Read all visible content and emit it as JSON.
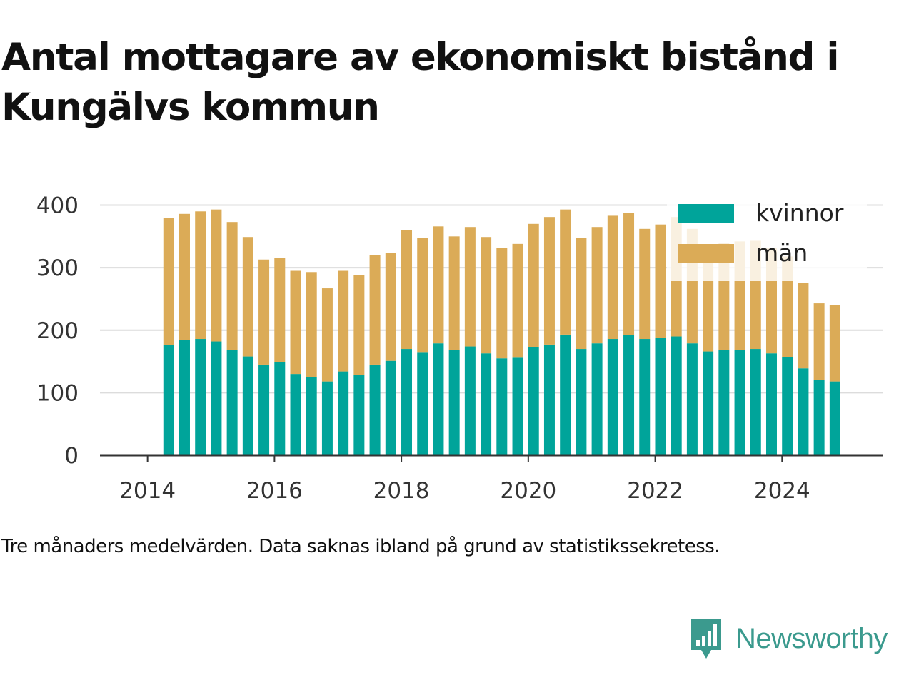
{
  "title": "Antal mottagare av ekonomiskt bistånd i Kungälvs kommun",
  "footnote": "Tre månaders medelvärden. Data saknas ibland på grund av statistikssekretess.",
  "brand": {
    "name": "Newsworthy",
    "color": "#3b9a8e",
    "icon": "newsworthy-logo-icon"
  },
  "chart_data": {
    "type": "bar",
    "stacked": true,
    "x": [
      "2014-05",
      "2014-08",
      "2014-11",
      "2015-02",
      "2015-05",
      "2015-08",
      "2015-11",
      "2016-02",
      "2016-05",
      "2016-08",
      "2016-11",
      "2017-02",
      "2017-05",
      "2017-08",
      "2017-11",
      "2018-02",
      "2018-05",
      "2018-08",
      "2018-11",
      "2019-02",
      "2019-05",
      "2019-08",
      "2019-11",
      "2020-02",
      "2020-05",
      "2020-08",
      "2020-11",
      "2021-02",
      "2021-05",
      "2021-08",
      "2021-11",
      "2022-02",
      "2022-05",
      "2022-08",
      "2022-11",
      "2023-02",
      "2023-05",
      "2023-08",
      "2023-11",
      "2024-02",
      "2024-05",
      "2024-08",
      "2024-11"
    ],
    "series": [
      {
        "name": "kvinnor",
        "color": "#00a49a",
        "values": [
          176,
          184,
          186,
          182,
          168,
          158,
          145,
          149,
          130,
          125,
          118,
          134,
          128,
          145,
          151,
          170,
          164,
          179,
          168,
          174,
          163,
          155,
          156,
          173,
          177,
          193,
          170,
          179,
          186,
          192,
          186,
          188,
          190,
          179,
          166,
          168,
          168,
          170,
          163,
          157,
          139,
          120,
          118
        ]
      },
      {
        "name": "män",
        "color": "#dbab57",
        "values": [
          204,
          202,
          204,
          211,
          205,
          191,
          168,
          167,
          165,
          168,
          149,
          161,
          160,
          175,
          173,
          190,
          184,
          187,
          182,
          191,
          186,
          176,
          182,
          197,
          204,
          200,
          178,
          186,
          197,
          196,
          176,
          181,
          191,
          183,
          160,
          172,
          174,
          173,
          168,
          161,
          137,
          123,
          122
        ]
      }
    ],
    "xlim": [
      "2013-04",
      "2025-08"
    ],
    "xticks": [
      "2014",
      "2016",
      "2018",
      "2020",
      "2022",
      "2024"
    ],
    "ylim": [
      0,
      420
    ],
    "yticks": [
      0,
      100,
      200,
      300,
      400
    ],
    "grid": true,
    "legend": "top-right"
  }
}
